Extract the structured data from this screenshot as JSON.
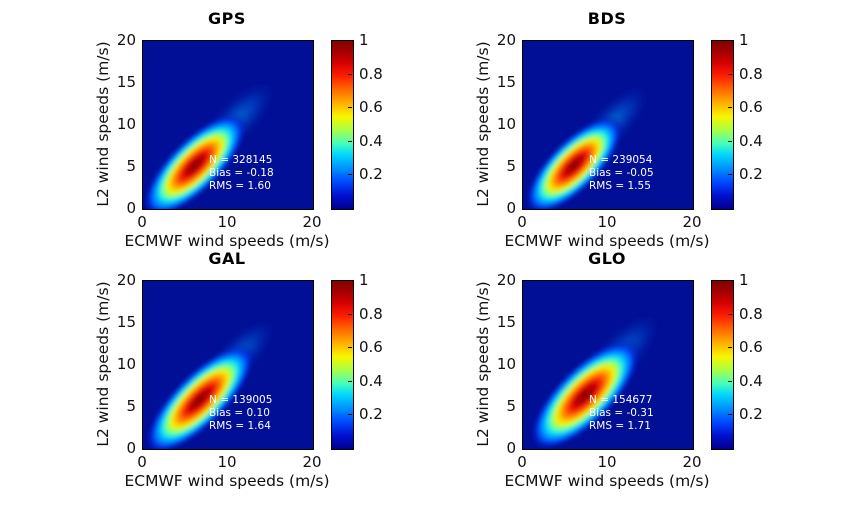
{
  "figure_title": "",
  "colors": {
    "plot_background": "#000f96",
    "colormap_low": "#000090",
    "colormap_high": "#7f0000",
    "annotation_text": "#ffffff",
    "axis_text": "#111111"
  },
  "chart_data": [
    {
      "type": "heatmap",
      "title": "GPS",
      "xlabel": "ECMWF wind speeds (m/s)",
      "ylabel": "L2 wind speeds (m/s)",
      "xlim": [
        0,
        20
      ],
      "ylim": [
        0,
        20
      ],
      "xticks": [
        0,
        10,
        20
      ],
      "yticks": [
        0,
        5,
        10,
        15,
        20
      ],
      "colormap": "jet",
      "colorbar_range": [
        0,
        1
      ],
      "colorbar_ticks": [
        1,
        0.8,
        0.6,
        0.4,
        0.2
      ],
      "stats": {
        "n": 328145,
        "bias": -0.18,
        "rms": 1.6
      },
      "stats_text": [
        "N = 328145",
        "Bias = -0.18",
        "RMS = 1.60"
      ],
      "density": {
        "peak_value": 1,
        "peak_center": [
          6.1,
          5.2
        ],
        "spread_semiaxes": [
          8.0,
          3.05
        ],
        "tilt_deg": 45,
        "tail_center": [
          11.0,
          10.6
        ],
        "tail_semiaxes": [
          6.4,
          2.3
        ]
      }
    },
    {
      "type": "heatmap",
      "title": "BDS",
      "xlabel": "ECMWF wind speeds (m/s)",
      "ylabel": "L2 wind speeds (m/s)",
      "xlim": [
        0,
        20
      ],
      "ylim": [
        0,
        20
      ],
      "xticks": [
        0,
        10,
        20
      ],
      "yticks": [
        0,
        5,
        10,
        15,
        20
      ],
      "colormap": "jet",
      "colorbar_range": [
        0,
        1
      ],
      "colorbar_ticks": [
        1,
        0.8,
        0.6,
        0.4,
        0.2
      ],
      "stats": {
        "n": 239054,
        "bias": -0.05,
        "rms": 1.55
      },
      "stats_text": [
        "N = 239054",
        "Bias = -0.05",
        "RMS = 1.55"
      ],
      "density": {
        "peak_value": 1,
        "peak_center": [
          6.0,
          5.2
        ],
        "spread_semiaxes": [
          7.5,
          2.95
        ],
        "tilt_deg": 45,
        "tail_center": [
          10.6,
          10.4
        ],
        "tail_semiaxes": [
          5.9,
          2.15
        ]
      }
    },
    {
      "type": "heatmap",
      "title": "GAL",
      "xlabel": "ECMWF wind speeds (m/s)",
      "ylabel": "L2 wind speeds (m/s)",
      "xlim": [
        0,
        20
      ],
      "ylim": [
        0,
        20
      ],
      "xticks": [
        0,
        10,
        20
      ],
      "yticks": [
        0,
        5,
        10,
        15,
        20
      ],
      "colormap": "jet",
      "colorbar_range": [
        0,
        1
      ],
      "colorbar_ticks": [
        1,
        0.8,
        0.6,
        0.4,
        0.2
      ],
      "stats": {
        "n": 139005,
        "bias": 0.1,
        "rms": 1.64
      },
      "stats_text": [
        "N = 139005",
        "Bias = 0.10",
        "RMS = 1.64"
      ],
      "density": {
        "peak_value": 1,
        "peak_center": [
          6.7,
          5.9
        ],
        "spread_semiaxes": [
          8.5,
          3.05
        ],
        "tilt_deg": 45,
        "tail_center": [
          11.2,
          11.1
        ],
        "tail_semiaxes": [
          6.1,
          2.15
        ]
      }
    },
    {
      "type": "heatmap",
      "title": "GLO",
      "xlabel": "ECMWF wind speeds (m/s)",
      "ylabel": "L2 wind speeds (m/s)",
      "xlim": [
        0,
        20
      ],
      "ylim": [
        0,
        20
      ],
      "xticks": [
        0,
        10,
        20
      ],
      "yticks": [
        0,
        5,
        10,
        15,
        20
      ],
      "colormap": "jet",
      "colorbar_range": [
        0,
        1
      ],
      "colorbar_ticks": [
        1,
        0.8,
        0.6,
        0.4,
        0.2
      ],
      "stats": {
        "n": 154677,
        "bias": -0.31,
        "rms": 1.71
      },
      "stats_text": [
        "N = 154677",
        "Bias = -0.31",
        "RMS = 1.71"
      ],
      "density": {
        "peak_value": 1,
        "peak_center": [
          7.3,
          6.4
        ],
        "spread_semiaxes": [
          8.5,
          3.3
        ],
        "tilt_deg": 45,
        "tail_center": [
          11.5,
          11.4
        ],
        "tail_semiaxes": [
          6.4,
          2.4
        ]
      }
    }
  ]
}
